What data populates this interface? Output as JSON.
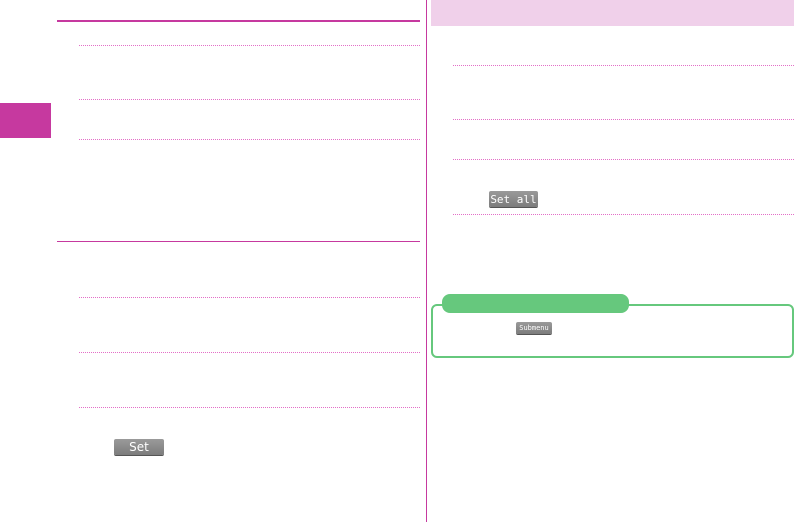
{
  "left": {
    "set_button": "Set"
  },
  "right": {
    "set_all_button": "Set all"
  },
  "note": {
    "submenu_button": "Submenu"
  },
  "colors": {
    "accent": "#c6399f",
    "header_bg": "#f0d0ea",
    "note_green": "#66c87d"
  }
}
